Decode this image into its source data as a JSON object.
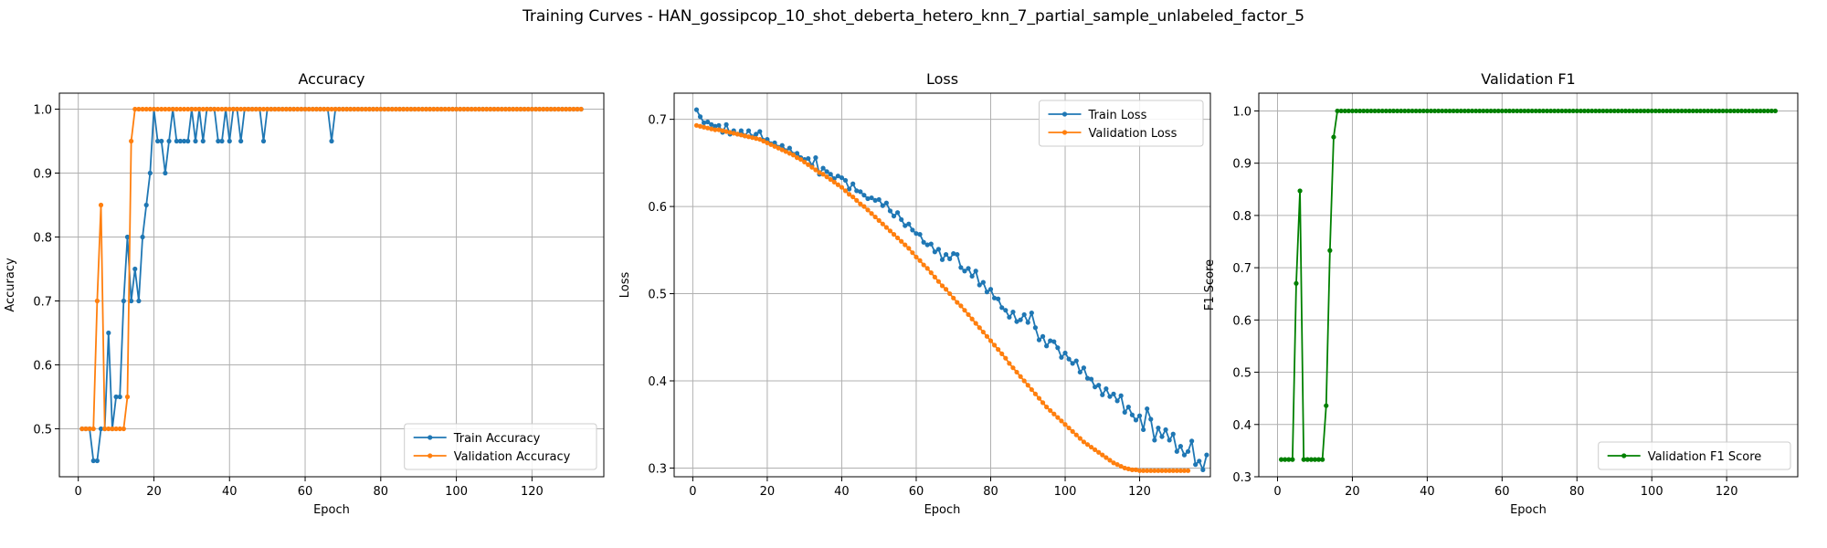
{
  "suptitle": "Training Curves - HAN_gossipcop_10_shot_deberta_hetero_knn_7_partial_sample_unlabeled_factor_5",
  "colors": {
    "train": "#1f77b4",
    "validation": "#ff7f0e",
    "f1": "#008000",
    "grid": "#b0b0b0"
  },
  "chart_data": [
    {
      "type": "line",
      "title": "Accuracy",
      "xlabel": "Epoch",
      "ylabel": "Accuracy",
      "xlim": [
        -5,
        139
      ],
      "ylim": [
        0.425,
        1.025
      ],
      "xticks": [
        0,
        20,
        40,
        60,
        80,
        100,
        120
      ],
      "yticks": [
        0.5,
        0.6,
        0.7,
        0.8,
        0.9,
        1.0
      ],
      "ytick_labels": [
        "0.5",
        "0.6",
        "0.7",
        "0.8",
        "0.9",
        "1.0"
      ],
      "grid": true,
      "legend_loc": "lower-right",
      "series": [
        {
          "name": "Train Accuracy",
          "color": "#1f77b4",
          "values": [
            0.5,
            0.5,
            0.5,
            0.45,
            0.45,
            0.5,
            0.5,
            0.65,
            0.5,
            0.55,
            0.55,
            0.7,
            0.8,
            0.7,
            0.75,
            0.7,
            0.8,
            0.85,
            0.9,
            1.0,
            0.95,
            0.95,
            0.9,
            0.95,
            1.0,
            0.95,
            0.95,
            0.95,
            0.95,
            1.0,
            0.95,
            1.0,
            0.95,
            1.0,
            1.0,
            1.0,
            0.95,
            0.95,
            1.0,
            0.95,
            1.0,
            1.0,
            0.95,
            1.0,
            1.0,
            1.0,
            1.0,
            1.0,
            0.95,
            1.0,
            1.0,
            1.0,
            1.0,
            1.0,
            1.0,
            1.0,
            1.0,
            1.0,
            1.0,
            1.0,
            1.0,
            1.0,
            1.0,
            1.0,
            1.0,
            1.0,
            0.95,
            1.0,
            1.0,
            1.0,
            1.0,
            1.0,
            1.0,
            1.0,
            1.0,
            1.0,
            1.0,
            1.0,
            1.0,
            1.0,
            1.0,
            1.0,
            1.0,
            1.0,
            1.0,
            1.0,
            1.0,
            1.0,
            1.0,
            1.0,
            1.0,
            1.0,
            1.0,
            1.0,
            1.0,
            1.0,
            1.0,
            1.0,
            1.0,
            1.0,
            1.0,
            1.0,
            1.0,
            1.0,
            1.0,
            1.0,
            1.0,
            1.0,
            1.0,
            1.0,
            1.0,
            1.0,
            1.0,
            1.0,
            1.0,
            1.0,
            1.0,
            1.0,
            1.0,
            1.0,
            1.0,
            1.0,
            1.0,
            1.0,
            1.0,
            1.0,
            1.0,
            1.0,
            1.0,
            1.0,
            1.0,
            1.0,
            1.0
          ]
        },
        {
          "name": "Validation Accuracy",
          "color": "#ff7f0e",
          "values": [
            0.5,
            0.5,
            0.5,
            0.5,
            0.7,
            0.85,
            0.5,
            0.5,
            0.5,
            0.5,
            0.5,
            0.5,
            0.55,
            0.95,
            1.0,
            1.0,
            1.0,
            1.0,
            1.0,
            1.0,
            1.0,
            1.0,
            1.0,
            1.0,
            1.0,
            1.0,
            1.0,
            1.0,
            1.0,
            1.0,
            1.0,
            1.0,
            1.0,
            1.0,
            1.0,
            1.0,
            1.0,
            1.0,
            1.0,
            1.0,
            1.0,
            1.0,
            1.0,
            1.0,
            1.0,
            1.0,
            1.0,
            1.0,
            1.0,
            1.0,
            1.0,
            1.0,
            1.0,
            1.0,
            1.0,
            1.0,
            1.0,
            1.0,
            1.0,
            1.0,
            1.0,
            1.0,
            1.0,
            1.0,
            1.0,
            1.0,
            1.0,
            1.0,
            1.0,
            1.0,
            1.0,
            1.0,
            1.0,
            1.0,
            1.0,
            1.0,
            1.0,
            1.0,
            1.0,
            1.0,
            1.0,
            1.0,
            1.0,
            1.0,
            1.0,
            1.0,
            1.0,
            1.0,
            1.0,
            1.0,
            1.0,
            1.0,
            1.0,
            1.0,
            1.0,
            1.0,
            1.0,
            1.0,
            1.0,
            1.0,
            1.0,
            1.0,
            1.0,
            1.0,
            1.0,
            1.0,
            1.0,
            1.0,
            1.0,
            1.0,
            1.0,
            1.0,
            1.0,
            1.0,
            1.0,
            1.0,
            1.0,
            1.0,
            1.0,
            1.0,
            1.0,
            1.0,
            1.0,
            1.0,
            1.0,
            1.0,
            1.0,
            1.0,
            1.0,
            1.0,
            1.0,
            1.0,
            1.0
          ]
        }
      ]
    },
    {
      "type": "line",
      "title": "Loss",
      "xlabel": "Epoch",
      "ylabel": "Loss",
      "xlim": [
        -5,
        139
      ],
      "ylim": [
        0.29,
        0.73
      ],
      "xticks": [
        0,
        20,
        40,
        60,
        80,
        100,
        120
      ],
      "yticks": [
        0.3,
        0.4,
        0.5,
        0.6,
        0.7
      ],
      "ytick_labels": [
        "0.3",
        "0.4",
        "0.5",
        "0.6",
        "0.7"
      ],
      "grid": true,
      "legend_loc": "top-right",
      "series": [
        {
          "name": "Train Loss",
          "color": "#1f77b4",
          "values": [
            0.711,
            0.703,
            0.696,
            0.697,
            0.694,
            0.692,
            0.693,
            0.685,
            0.694,
            0.683,
            0.687,
            0.683,
            0.687,
            0.681,
            0.687,
            0.68,
            0.683,
            0.686,
            0.676,
            0.677,
            0.672,
            0.673,
            0.668,
            0.67,
            0.664,
            0.667,
            0.66,
            0.661,
            0.656,
            0.654,
            0.655,
            0.647,
            0.656,
            0.637,
            0.644,
            0.64,
            0.637,
            0.632,
            0.635,
            0.633,
            0.63,
            0.62,
            0.626,
            0.618,
            0.617,
            0.613,
            0.609,
            0.61,
            0.607,
            0.608,
            0.601,
            0.604,
            0.595,
            0.589,
            0.593,
            0.585,
            0.578,
            0.58,
            0.573,
            0.569,
            0.568,
            0.559,
            0.556,
            0.557,
            0.548,
            0.551,
            0.539,
            0.545,
            0.54,
            0.546,
            0.545,
            0.53,
            0.526,
            0.529,
            0.52,
            0.526,
            0.51,
            0.513,
            0.502,
            0.505,
            0.495,
            0.494,
            0.484,
            0.481,
            0.473,
            0.479,
            0.468,
            0.47,
            0.476,
            0.467,
            0.478,
            0.461,
            0.447,
            0.451,
            0.44,
            0.446,
            0.445,
            0.438,
            0.427,
            0.432,
            0.425,
            0.42,
            0.423,
            0.41,
            0.415,
            0.403,
            0.402,
            0.393,
            0.395,
            0.384,
            0.391,
            0.382,
            0.385,
            0.377,
            0.383,
            0.364,
            0.37,
            0.361,
            0.355,
            0.36,
            0.344,
            0.368,
            0.356,
            0.332,
            0.346,
            0.336,
            0.344,
            0.332,
            0.339,
            0.319,
            0.325,
            0.315,
            0.319,
            0.331,
            0.304,
            0.308,
            0.298,
            0.315
          ]
        },
        {
          "name": "Validation Loss",
          "color": "#ff7f0e",
          "values": [
            0.693,
            0.692,
            0.691,
            0.69,
            0.689,
            0.688,
            0.688,
            0.687,
            0.686,
            0.685,
            0.684,
            0.683,
            0.682,
            0.681,
            0.68,
            0.679,
            0.678,
            0.677,
            0.675,
            0.673,
            0.671,
            0.669,
            0.667,
            0.665,
            0.663,
            0.661,
            0.659,
            0.656,
            0.654,
            0.651,
            0.648,
            0.645,
            0.642,
            0.639,
            0.637,
            0.634,
            0.631,
            0.628,
            0.625,
            0.622,
            0.618,
            0.614,
            0.611,
            0.607,
            0.603,
            0.6,
            0.596,
            0.592,
            0.588,
            0.584,
            0.58,
            0.576,
            0.572,
            0.568,
            0.564,
            0.56,
            0.556,
            0.552,
            0.547,
            0.542,
            0.538,
            0.533,
            0.529,
            0.524,
            0.519,
            0.514,
            0.509,
            0.505,
            0.5,
            0.495,
            0.49,
            0.486,
            0.481,
            0.476,
            0.471,
            0.466,
            0.461,
            0.456,
            0.451,
            0.446,
            0.441,
            0.436,
            0.431,
            0.426,
            0.42,
            0.415,
            0.41,
            0.405,
            0.4,
            0.395,
            0.39,
            0.385,
            0.38,
            0.375,
            0.37,
            0.366,
            0.362,
            0.358,
            0.354,
            0.35,
            0.346,
            0.342,
            0.338,
            0.334,
            0.33,
            0.327,
            0.324,
            0.321,
            0.318,
            0.315,
            0.312,
            0.309,
            0.306,
            0.304,
            0.302,
            0.3,
            0.299,
            0.298,
            0.298,
            0.297,
            0.297,
            0.297,
            0.297,
            0.297,
            0.297,
            0.297,
            0.297,
            0.297,
            0.297,
            0.297,
            0.297,
            0.297,
            0.297
          ]
        }
      ]
    },
    {
      "type": "line",
      "title": "Validation F1",
      "xlabel": "Epoch",
      "ylabel": "F1 Score",
      "xlim": [
        -5,
        139
      ],
      "ylim": [
        0.3,
        1.034
      ],
      "xticks": [
        0,
        20,
        40,
        60,
        80,
        100,
        120
      ],
      "yticks": [
        0.3,
        0.4,
        0.5,
        0.6,
        0.7,
        0.8,
        0.9,
        1.0
      ],
      "ytick_labels": [
        "0.3",
        "0.4",
        "0.5",
        "0.6",
        "0.7",
        "0.8",
        "0.9",
        "1.0"
      ],
      "grid": true,
      "legend_loc": "lower-right",
      "series": [
        {
          "name": "Validation F1 Score",
          "color": "#008000",
          "values": [
            0.333,
            0.333,
            0.333,
            0.333,
            0.67,
            0.847,
            0.333,
            0.333,
            0.333,
            0.333,
            0.333,
            0.333,
            0.436,
            0.733,
            0.95,
            1.0,
            1.0,
            1.0,
            1.0,
            1.0,
            1.0,
            1.0,
            1.0,
            1.0,
            1.0,
            1.0,
            1.0,
            1.0,
            1.0,
            1.0,
            1.0,
            1.0,
            1.0,
            1.0,
            1.0,
            1.0,
            1.0,
            1.0,
            1.0,
            1.0,
            1.0,
            1.0,
            1.0,
            1.0,
            1.0,
            1.0,
            1.0,
            1.0,
            1.0,
            1.0,
            1.0,
            1.0,
            1.0,
            1.0,
            1.0,
            1.0,
            1.0,
            1.0,
            1.0,
            1.0,
            1.0,
            1.0,
            1.0,
            1.0,
            1.0,
            1.0,
            1.0,
            1.0,
            1.0,
            1.0,
            1.0,
            1.0,
            1.0,
            1.0,
            1.0,
            1.0,
            1.0,
            1.0,
            1.0,
            1.0,
            1.0,
            1.0,
            1.0,
            1.0,
            1.0,
            1.0,
            1.0,
            1.0,
            1.0,
            1.0,
            1.0,
            1.0,
            1.0,
            1.0,
            1.0,
            1.0,
            1.0,
            1.0,
            1.0,
            1.0,
            1.0,
            1.0,
            1.0,
            1.0,
            1.0,
            1.0,
            1.0,
            1.0,
            1.0,
            1.0,
            1.0,
            1.0,
            1.0,
            1.0,
            1.0,
            1.0,
            1.0,
            1.0,
            1.0,
            1.0,
            1.0,
            1.0,
            1.0,
            1.0,
            1.0,
            1.0,
            1.0,
            1.0,
            1.0,
            1.0,
            1.0,
            1.0,
            1.0
          ]
        }
      ]
    }
  ]
}
